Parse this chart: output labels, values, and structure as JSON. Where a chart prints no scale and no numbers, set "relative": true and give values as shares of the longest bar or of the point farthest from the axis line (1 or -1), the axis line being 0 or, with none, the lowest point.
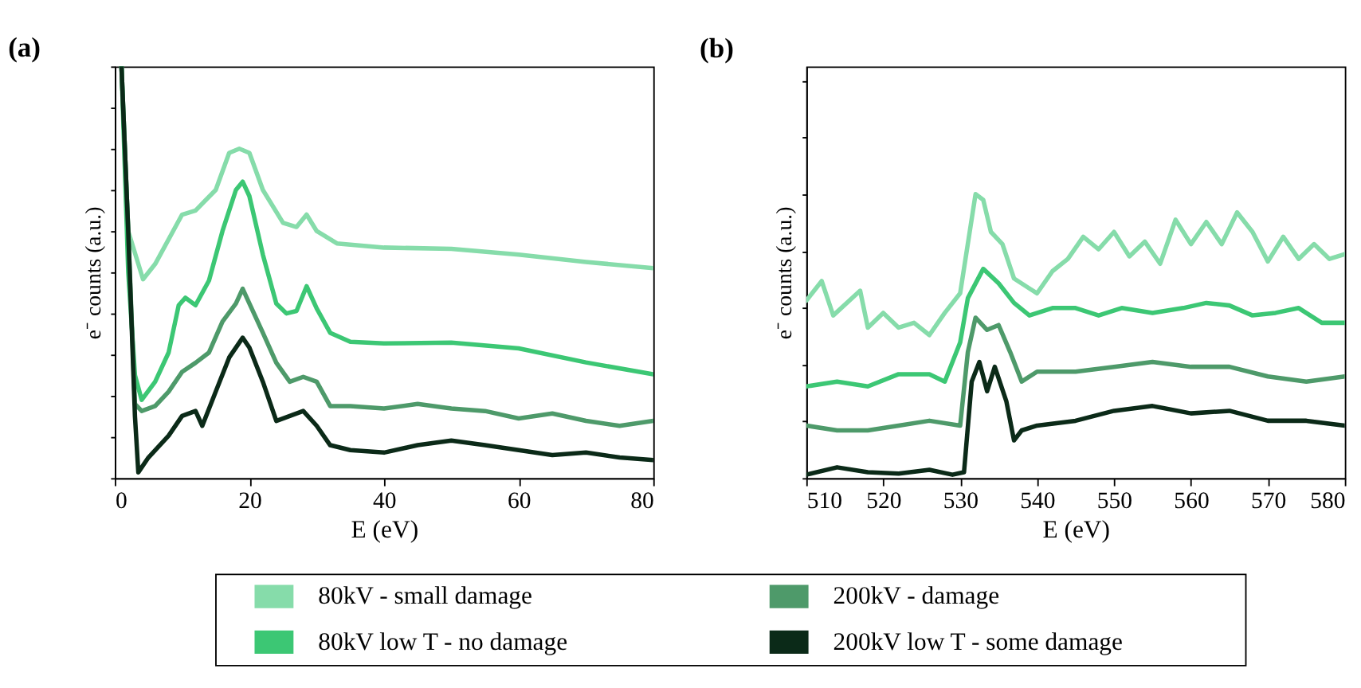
{
  "chart_data": [
    {
      "type": "line",
      "title": "(a)",
      "xlabel": "E (eV)",
      "ylabel": "e⁻ counts (a.u.)",
      "relative": true,
      "xlim": [
        0,
        80
      ],
      "xticks": [
        0,
        20,
        40,
        60,
        80
      ],
      "grid": false,
      "legend": "bottom",
      "tick_labels": "x",
      "line_style": "solid",
      "marker": "none",
      "series": [
        {
          "name": "80kV - small damage",
          "color": "#86dcaa",
          "x": [
            1,
            2,
            4.2,
            6,
            10,
            12,
            15,
            17,
            18.5,
            20,
            22,
            25,
            27,
            28.5,
            30,
            33,
            40,
            50,
            60,
            70,
            80
          ],
          "values": [
            1.0,
            0.6,
            0.483,
            0.52,
            0.64,
            0.65,
            0.7,
            0.79,
            0.8,
            0.79,
            0.7,
            0.62,
            0.61,
            0.64,
            0.6,
            0.57,
            0.56,
            0.557,
            0.543,
            0.525,
            0.51
          ]
        },
        {
          "name": "80kV low T - no damage",
          "color": "#3cc774",
          "x": [
            1,
            2,
            3,
            4,
            6,
            8,
            9.5,
            10.5,
            12,
            14,
            16,
            18,
            19,
            20,
            22,
            24,
            25.5,
            27,
            28.5,
            30,
            32,
            35,
            40,
            50,
            60,
            70,
            80
          ],
          "values": [
            1.0,
            0.5,
            0.25,
            0.19,
            0.234,
            0.305,
            0.42,
            0.438,
            0.42,
            0.48,
            0.6,
            0.7,
            0.72,
            0.685,
            0.543,
            0.424,
            0.4,
            0.406,
            0.466,
            0.412,
            0.353,
            0.331,
            0.327,
            0.329,
            0.315,
            0.281,
            0.252
          ]
        },
        {
          "name": "200kV - damage",
          "color": "#4e9a6a",
          "x": [
            1,
            2,
            3,
            4,
            6,
            8,
            10,
            12,
            14,
            16,
            18,
            19,
            20,
            22,
            24,
            26,
            28,
            30,
            32,
            35,
            40,
            45,
            50,
            55,
            60,
            65,
            70,
            75,
            80
          ],
          "values": [
            1.0,
            0.6,
            0.18,
            0.163,
            0.175,
            0.21,
            0.258,
            0.28,
            0.305,
            0.38,
            0.424,
            0.46,
            0.424,
            0.353,
            0.28,
            0.234,
            0.246,
            0.234,
            0.175,
            0.175,
            0.169,
            0.18,
            0.169,
            0.163,
            0.145,
            0.157,
            0.139,
            0.127,
            0.139
          ]
        },
        {
          "name": "200kV low T - some damage",
          "color": "#0b2a18",
          "x": [
            1,
            2,
            3,
            3.5,
            5,
            8,
            10,
            12,
            13,
            15,
            17,
            19,
            20,
            22,
            24,
            26,
            28,
            30,
            32,
            35,
            40,
            45,
            50,
            55,
            60,
            65,
            70,
            75,
            80
          ],
          "values": [
            1.0,
            0.6,
            0.15,
            0.014,
            0.05,
            0.103,
            0.151,
            0.163,
            0.127,
            0.21,
            0.293,
            0.341,
            0.317,
            0.234,
            0.139,
            0.151,
            0.163,
            0.127,
            0.08,
            0.068,
            0.062,
            0.08,
            0.091,
            0.08,
            0.068,
            0.056,
            0.062,
            0.05,
            0.044
          ]
        }
      ]
    },
    {
      "type": "line",
      "title": "(b)",
      "xlabel": "E (eV)",
      "ylabel": "e⁻ counts (a.u.)",
      "relative": true,
      "xlim": [
        510,
        580
      ],
      "xticks": [
        510,
        520,
        530,
        540,
        550,
        560,
        570,
        580
      ],
      "grid": false,
      "tick_labels": "x",
      "line_style": "solid",
      "marker": "none",
      "series": [
        {
          "color": "#86dcaa",
          "x": [
            510,
            512,
            513.5,
            517,
            518,
            520,
            522,
            524,
            526,
            528,
            530,
            532,
            533,
            534,
            535.5,
            537,
            539,
            540,
            542,
            544,
            546,
            548,
            550,
            552,
            554,
            556,
            558,
            560,
            562,
            564,
            566,
            568,
            570,
            572,
            574,
            576,
            578,
            580
          ],
          "values": [
            0.625,
            0.694,
            0.573,
            0.66,
            0.53,
            0.582,
            0.53,
            0.547,
            0.504,
            0.582,
            0.651,
            1.0,
            0.98,
            0.867,
            0.824,
            0.703,
            0.668,
            0.651,
            0.729,
            0.772,
            0.85,
            0.806,
            0.867,
            0.781,
            0.833,
            0.755,
            0.91,
            0.824,
            0.902,
            0.824,
            0.936,
            0.867,
            0.763,
            0.85,
            0.772,
            0.824,
            0.772,
            0.789
          ]
        },
        {
          "color": "#3cc774",
          "x": [
            510,
            514,
            518,
            522,
            526,
            528,
            530,
            531,
            533,
            535,
            537,
            539,
            542,
            545,
            548,
            551,
            555,
            559,
            562,
            565,
            568,
            571,
            574,
            577,
            580
          ],
          "values": [
            0.323,
            0.34,
            0.323,
            0.366,
            0.366,
            0.34,
            0.478,
            0.634,
            0.737,
            0.686,
            0.617,
            0.573,
            0.599,
            0.599,
            0.573,
            0.599,
            0.582,
            0.599,
            0.617,
            0.608,
            0.573,
            0.582,
            0.599,
            0.547,
            0.547
          ]
        },
        {
          "color": "#4e9a6a",
          "x": [
            510,
            514,
            518,
            522,
            526,
            530,
            531,
            532,
            533.5,
            535,
            536.5,
            538,
            540,
            545,
            550,
            555,
            560,
            565,
            570,
            575,
            580
          ],
          "values": [
            0.185,
            0.168,
            0.168,
            0.185,
            0.202,
            0.185,
            0.444,
            0.565,
            0.522,
            0.539,
            0.444,
            0.34,
            0.375,
            0.375,
            0.392,
            0.409,
            0.392,
            0.392,
            0.358,
            0.34,
            0.358
          ]
        },
        {
          "color": "#0b2a18",
          "x": [
            510,
            514,
            518,
            522,
            526,
            529,
            530.5,
            531.5,
            532.5,
            533.5,
            534.5,
            536,
            537,
            538,
            540,
            545,
            550,
            555,
            560,
            565,
            570,
            575,
            580
          ],
          "values": [
            0.012,
            0.038,
            0.021,
            0.016,
            0.029,
            0.012,
            0.021,
            0.34,
            0.409,
            0.306,
            0.392,
            0.271,
            0.133,
            0.168,
            0.185,
            0.202,
            0.237,
            0.254,
            0.228,
            0.237,
            0.202,
            0.202,
            0.185
          ]
        }
      ]
    }
  ]
}
